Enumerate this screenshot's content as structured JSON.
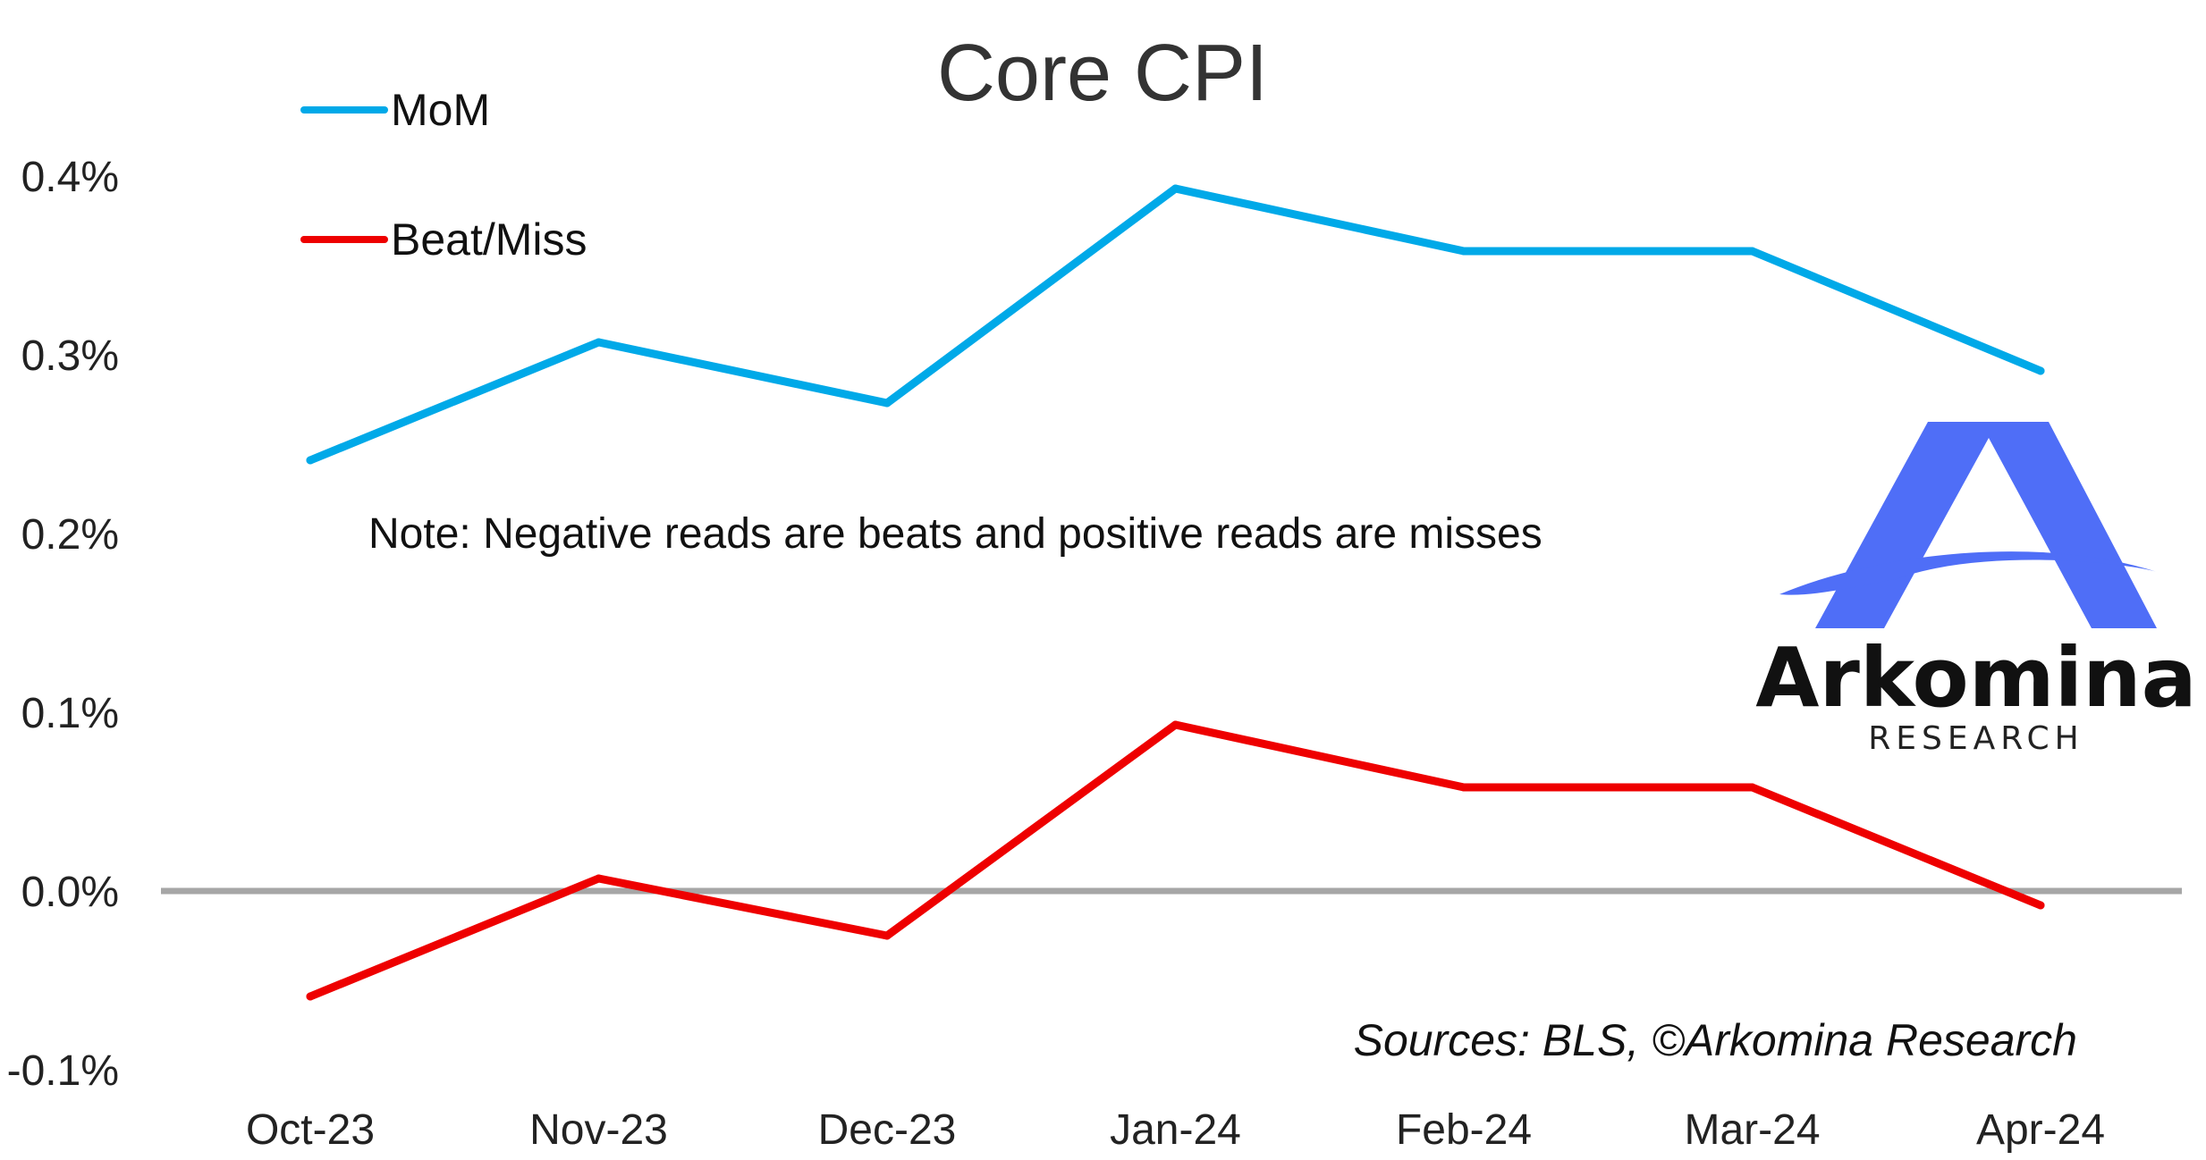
{
  "chart_data": {
    "type": "line",
    "title": "Core CPI",
    "xlabel": "",
    "ylabel": "",
    "categories": [
      "Oct-23",
      "Nov-23",
      "Dec-23",
      "Jan-24",
      "Feb-24",
      "Mar-24",
      "Apr-24"
    ],
    "ylim": [
      -0.1,
      0.4
    ],
    "yticks": [
      "-0.1%",
      "0.0%",
      "0.1%",
      "0.2%",
      "0.3%",
      "0.4%"
    ],
    "ytick_values": [
      -0.1,
      0.0,
      0.1,
      0.2,
      0.3,
      0.4
    ],
    "zero_line": true,
    "grid": false,
    "legend_position": "top-left",
    "series": [
      {
        "name": "MoM",
        "color": "#00A9E8",
        "values": [
          0.241,
          0.307,
          0.273,
          0.393,
          0.358,
          0.358,
          0.291
        ]
      },
      {
        "name": "Beat/Miss",
        "color": "#EE0000",
        "values": [
          -0.059,
          0.007,
          -0.025,
          0.093,
          0.058,
          0.058,
          -0.008
        ]
      }
    ],
    "annotations": {
      "note": "Note: Negative reads are beats and positive reads are misses",
      "source": "Sources: BLS, ©Arkomina Research"
    }
  },
  "logo": {
    "name": "Arkomina",
    "subtitle": "RESEARCH",
    "accent_color": "#4F6EF7"
  }
}
